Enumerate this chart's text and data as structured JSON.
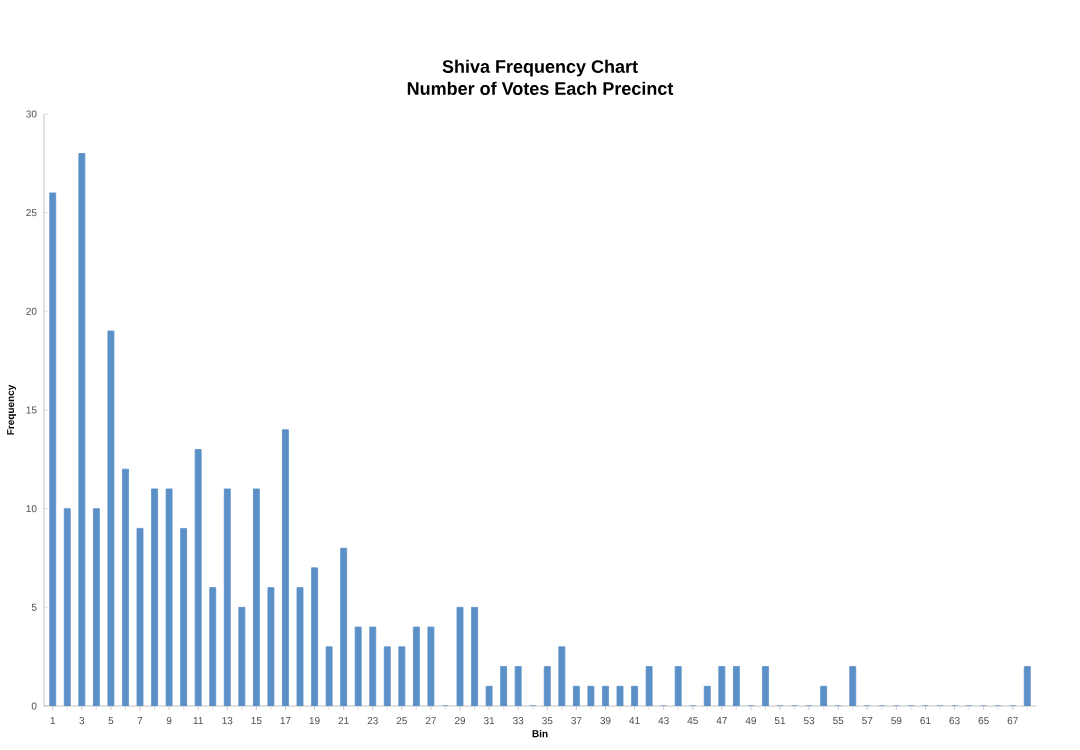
{
  "chart_data": {
    "type": "bar",
    "title": "Shiva Frequency Chart",
    "subtitle": "Number of Votes Each Precinct",
    "xlabel": "Bin",
    "ylabel": "Frequency",
    "categories": [
      "1",
      null,
      "3",
      null,
      "5",
      null,
      "7",
      null,
      "9",
      null,
      "11",
      null,
      "13",
      null,
      "15",
      null,
      "17",
      null,
      "19",
      null,
      "21",
      null,
      "23",
      null,
      "25",
      null,
      "27",
      null,
      "29",
      null,
      "31",
      null,
      "33",
      null,
      "35",
      null,
      "37",
      null,
      "39",
      null,
      "41",
      null,
      "43",
      null,
      "45",
      null,
      "47",
      null,
      "49",
      null,
      "51",
      null,
      "53",
      null,
      "55",
      null,
      "57",
      null,
      "59",
      null,
      "61",
      null,
      "63",
      null,
      "65",
      null,
      "67",
      null
    ],
    "values": [
      26,
      10,
      28,
      10,
      19,
      12,
      9,
      11,
      11,
      9,
      13,
      6,
      11,
      5,
      11,
      6,
      14,
      6,
      7,
      3,
      8,
      4,
      4,
      3,
      3,
      4,
      4,
      0,
      5,
      5,
      1,
      2,
      2,
      0,
      2,
      3,
      1,
      1,
      1,
      1,
      1,
      2,
      0,
      2,
      0,
      1,
      2,
      2,
      0,
      2,
      0,
      0,
      0,
      1,
      0,
      2,
      0,
      0,
      0,
      0,
      0,
      0,
      0,
      0,
      0,
      0,
      0,
      2
    ],
    "color": "#5b8fc7",
    "ylim": [
      0,
      30
    ],
    "yticks": [
      0,
      5,
      10,
      15,
      20,
      25,
      30
    ]
  }
}
